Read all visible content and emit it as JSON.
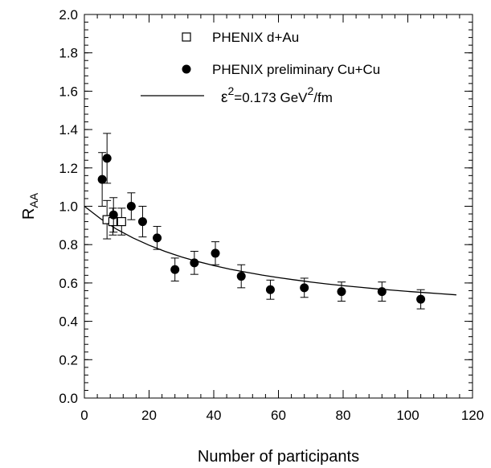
{
  "chart_data": {
    "type": "scatter",
    "xlabel": "Number of participants",
    "ylabel_main": "R",
    "ylabel_sub": "AA",
    "xlim": [
      0,
      120
    ],
    "ylim": [
      0.0,
      2.0
    ],
    "xticks": [
      0,
      20,
      40,
      60,
      80,
      100,
      120
    ],
    "yticks": [
      0.0,
      0.2,
      0.4,
      0.6,
      0.8,
      1.0,
      1.2,
      1.4,
      1.6,
      1.8,
      2.0
    ],
    "xtick_labels": [
      "0",
      "20",
      "40",
      "60",
      "80",
      "100",
      "120"
    ],
    "ytick_labels": [
      "0.0",
      "0.2",
      "0.4",
      "0.6",
      "0.8",
      "1.0",
      "1.2",
      "1.4",
      "1.6",
      "1.8",
      "2.0"
    ],
    "grid": false,
    "legend_position": "top-right",
    "series": [
      {
        "name": "PHENIX d+Au",
        "marker": "open-square",
        "points": [
          {
            "x": 7.0,
            "y": 0.93,
            "err": 0.1
          },
          {
            "x": 8.8,
            "y": 0.92,
            "err": 0.07
          },
          {
            "x": 11.5,
            "y": 0.92,
            "err": 0.07
          }
        ]
      },
      {
        "name": "PHENIX preliminary Cu+Cu",
        "marker": "filled-circle",
        "points": [
          {
            "x": 5.5,
            "y": 1.14,
            "err": 0.14
          },
          {
            "x": 7.0,
            "y": 1.25,
            "err": 0.13
          },
          {
            "x": 9.0,
            "y": 0.955,
            "err": 0.09
          },
          {
            "x": 14.5,
            "y": 1.0,
            "err": 0.07
          },
          {
            "x": 18.0,
            "y": 0.92,
            "err": 0.08
          },
          {
            "x": 22.5,
            "y": 0.835,
            "err": 0.06
          },
          {
            "x": 28.0,
            "y": 0.67,
            "err": 0.06
          },
          {
            "x": 34.0,
            "y": 0.705,
            "err": 0.06
          },
          {
            "x": 40.5,
            "y": 0.755,
            "err": 0.06
          },
          {
            "x": 48.5,
            "y": 0.635,
            "err": 0.06
          },
          {
            "x": 57.5,
            "y": 0.565,
            "err": 0.05
          },
          {
            "x": 68.0,
            "y": 0.575,
            "err": 0.05
          },
          {
            "x": 79.5,
            "y": 0.555,
            "err": 0.05
          },
          {
            "x": 92.0,
            "y": 0.555,
            "err": 0.05
          },
          {
            "x": 104.0,
            "y": 0.515,
            "err": 0.05
          }
        ]
      },
      {
        "name": "ε²=0.173 GeV²/fm",
        "marker": "line",
        "x": [
          0,
          5,
          10,
          15,
          20,
          25,
          30,
          35,
          40,
          45,
          50,
          55,
          60,
          65,
          70,
          75,
          80,
          85,
          90,
          95,
          100,
          105,
          110,
          115
        ],
        "y": [
          1.0,
          0.935,
          0.88,
          0.835,
          0.797,
          0.764,
          0.736,
          0.712,
          0.691,
          0.672,
          0.656,
          0.641,
          0.628,
          0.616,
          0.605,
          0.595,
          0.586,
          0.578,
          0.57,
          0.563,
          0.556,
          0.55,
          0.544,
          0.538
        ]
      }
    ],
    "legend": {
      "dau_label": "PHENIX d+Au",
      "cucu_label": "PHENIX preliminary Cu+Cu",
      "curve_label_prefix": "ε",
      "curve_label_sup1": "2",
      "curve_label_mid": "=0.173 GeV",
      "curve_label_sup2": "2",
      "curve_label_suffix": "/fm"
    }
  }
}
